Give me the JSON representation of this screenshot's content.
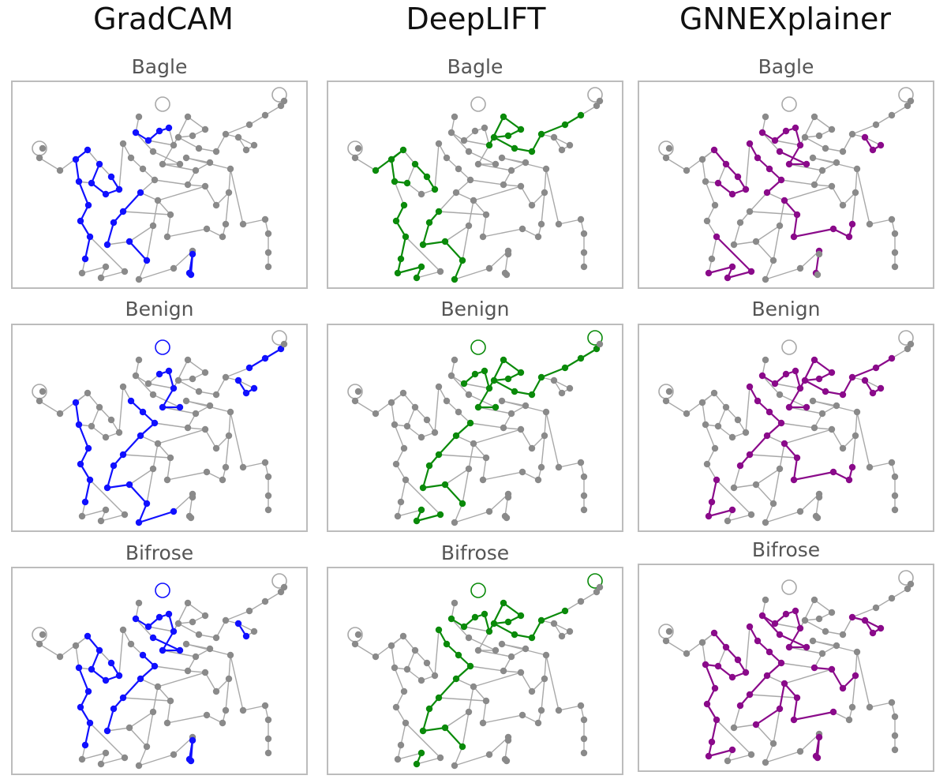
{
  "columns": [
    {
      "title": "GradCAM",
      "highlight_color": "#1010ff"
    },
    {
      "title": "DeepLIFT",
      "highlight_color": "#0a8a0a"
    },
    {
      "title": "GNNEXplainer",
      "highlight_color": "#8a0a8a"
    }
  ],
  "rows": [
    {
      "label": "Bagle"
    },
    {
      "label": "Benign"
    },
    {
      "label": "Bifrose"
    }
  ],
  "base_node_color": "#8a8a8a",
  "base_edge_color": "#a8a8a8"
}
